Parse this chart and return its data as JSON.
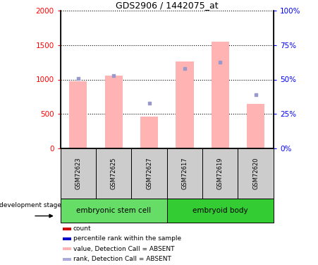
{
  "title": "GDS2906 / 1442075_at",
  "samples": [
    "GSM72623",
    "GSM72625",
    "GSM72627",
    "GSM72617",
    "GSM72619",
    "GSM72620"
  ],
  "bar_values": [
    975,
    1055,
    460,
    1265,
    1545,
    645
  ],
  "rank_dot_values": [
    1020,
    1060,
    655,
    1155,
    1255,
    780
  ],
  "bar_color": "#ffb3b3",
  "rank_color": "#9999cc",
  "ylim_left": [
    0,
    2000
  ],
  "ylim_right": [
    0,
    100
  ],
  "yticks_left": [
    0,
    500,
    1000,
    1500,
    2000
  ],
  "yticks_right": [
    0,
    25,
    50,
    75,
    100
  ],
  "ytick_labels_right": [
    "0%",
    "25%",
    "50%",
    "75%",
    "100%"
  ],
  "groups": [
    {
      "label": "embryonic stem cell",
      "start": 0,
      "end": 3,
      "color": "#66dd66"
    },
    {
      "label": "embryoid body",
      "start": 3,
      "end": 6,
      "color": "#33cc33"
    }
  ],
  "stage_label": "development stage",
  "legend_items": [
    {
      "color": "#cc0000",
      "label": "count"
    },
    {
      "color": "#0000cc",
      "label": "percentile rank within the sample"
    },
    {
      "color": "#ffb3b3",
      "label": "value, Detection Call = ABSENT"
    },
    {
      "color": "#aaaadd",
      "label": "rank, Detection Call = ABSENT"
    }
  ],
  "tick_label_area_color": "#cccccc",
  "bar_width": 0.5
}
